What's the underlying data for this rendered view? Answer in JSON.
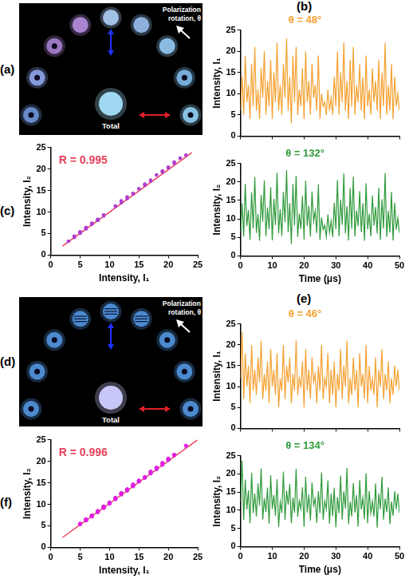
{
  "chart_data": [
    {
      "type": "line",
      "panel": "(b)",
      "title": "θ = 48°",
      "ylabel": "Intensity, I₁",
      "x": [
        0,
        0.5,
        1,
        1.5,
        2,
        2.5,
        3,
        3.5,
        4,
        4.5,
        5,
        5.5,
        6,
        6.5,
        7,
        7.5,
        8,
        8.5,
        9,
        9.5,
        10,
        10.5,
        11,
        11.5,
        12,
        12.5,
        13,
        13.5,
        14,
        14.5,
        15,
        15.5,
        16,
        16.5,
        17,
        17.5,
        18,
        18.5,
        19,
        19.5,
        20,
        20.5,
        21,
        21.5,
        22,
        22.5,
        23,
        23.5,
        24,
        24.5,
        25,
        25.5,
        26,
        26.5,
        27,
        27.5,
        28,
        28.5,
        29,
        29.5,
        30,
        30.5,
        31,
        31.5,
        32,
        32.5,
        33,
        33.5,
        34,
        34.5,
        35,
        35.5,
        36,
        36.5,
        37,
        37.5,
        38,
        38.5,
        39,
        39.5,
        40,
        40.5,
        41,
        41.5,
        42,
        42.5,
        43,
        43.5,
        44,
        44.5,
        45,
        45.5,
        46,
        46.5,
        47,
        47.5,
        48,
        48.5,
        49,
        49.5,
        50
      ],
      "series": [
        {
          "color": "#f5a030",
          "values": [
            6,
            14,
            5,
            19,
            8,
            12,
            4,
            17,
            7,
            21,
            6,
            11,
            4,
            16,
            9,
            20,
            5,
            13,
            7,
            18,
            4,
            15,
            8,
            22,
            6,
            12,
            5,
            17,
            9,
            23,
            6,
            14,
            3,
            19,
            8,
            21,
            5,
            11,
            7,
            16,
            4,
            20,
            8,
            13,
            5,
            17,
            9,
            12,
            6,
            19,
            4,
            10,
            7,
            8,
            5,
            11,
            6,
            9,
            5,
            14,
            7,
            20,
            5,
            15,
            8,
            22,
            6,
            13,
            4,
            18,
            7,
            21,
            5,
            12,
            8,
            17,
            6,
            14,
            4,
            19,
            7,
            11,
            5,
            16,
            8,
            13,
            6,
            18,
            4,
            15,
            7,
            22,
            5,
            12,
            6,
            17,
            4,
            14,
            7,
            10,
            6
          ]
        }
      ],
      "xlim": [
        0,
        50
      ],
      "ylim": [
        0,
        25
      ],
      "xticks": [
        0,
        10,
        20,
        30,
        40,
        50
      ],
      "yticks": [
        0,
        5,
        10,
        15,
        20,
        25
      ],
      "grid": false,
      "tick_labels": "y"
    },
    {
      "type": "line",
      "title": "θ = 132°",
      "xlabel": "Time (μs)",
      "ylabel": "Intensity, I₂",
      "x": [
        0,
        0.5,
        1,
        1.5,
        2,
        2.5,
        3,
        3.5,
        4,
        4.5,
        5,
        5.5,
        6,
        6.5,
        7,
        7.5,
        8,
        8.5,
        9,
        9.5,
        10,
        10.5,
        11,
        11.5,
        12,
        12.5,
        13,
        13.5,
        14,
        14.5,
        15,
        15.5,
        16,
        16.5,
        17,
        17.5,
        18,
        18.5,
        19,
        19.5,
        20,
        20.5,
        21,
        21.5,
        22,
        22.5,
        23,
        23.5,
        24,
        24.5,
        25,
        25.5,
        26,
        26.5,
        27,
        27.5,
        28,
        28.5,
        29,
        29.5,
        30,
        30.5,
        31,
        31.5,
        32,
        32.5,
        33,
        33.5,
        34,
        34.5,
        35,
        35.5,
        36,
        36.5,
        37,
        37.5,
        38,
        38.5,
        39,
        39.5,
        40,
        40.5,
        41,
        41.5,
        42,
        42.5,
        43,
        43.5,
        44,
        44.5,
        45,
        45.5,
        46,
        46.5,
        47,
        47.5,
        48,
        48.5,
        49,
        49.5,
        50
      ],
      "series": [
        {
          "color": "#2e9a3a",
          "values": [
            6.3,
            14.2,
            5.2,
            19.5,
            8.1,
            12.4,
            4.3,
            17.2,
            7.4,
            21.3,
            6.2,
            11.3,
            4.1,
            16.5,
            9.2,
            20.4,
            5.3,
            13.1,
            7.2,
            18.6,
            4.2,
            15.4,
            8.3,
            22.5,
            6.1,
            12.6,
            5.4,
            17.3,
            9.1,
            23.2,
            6.4,
            14.3,
            3.2,
            19.4,
            8.2,
            21.6,
            5.1,
            11.4,
            7.3,
            16.2,
            4.4,
            20.3,
            8.1,
            13.5,
            5.2,
            17.4,
            9.3,
            12.2,
            6.2,
            19.3,
            4.3,
            10.4,
            7.1,
            8.3,
            5.2,
            11.2,
            6.3,
            9.4,
            5.1,
            14.4,
            7.2,
            20.5,
            5.3,
            15.2,
            8.4,
            22.3,
            6.1,
            13.4,
            4.2,
            18.3,
            7.3,
            21.4,
            5.2,
            12.3,
            8.1,
            17.5,
            6.4,
            14.2,
            4.1,
            19.6,
            7.2,
            11.4,
            5.3,
            16.3,
            8.2,
            13.2,
            6.1,
            18.4,
            4.3,
            15.3,
            7.4,
            22.4,
            5.1,
            12.2,
            6.3,
            17.3,
            4.2,
            14.4,
            7.1,
            10.2,
            6.2
          ]
        }
      ],
      "xlim": [
        0,
        50
      ],
      "ylim": [
        0,
        25
      ],
      "xticks": [
        0,
        10,
        20,
        30,
        40,
        50
      ],
      "yticks": [
        0,
        5,
        10,
        15,
        20,
        25
      ],
      "grid": false
    },
    {
      "type": "scatter",
      "panel": "(c)",
      "annotation": "R = 0.995",
      "xlabel": "Intensity, I₁",
      "ylabel": "Intensity, I₂",
      "series": [
        {
          "type": "scatter",
          "color": "#b03cd0",
          "marker": "square",
          "x": [
            6,
            14,
            5,
            19,
            8,
            12,
            4,
            17,
            7,
            21,
            6,
            11,
            4,
            16,
            9,
            20,
            5,
            13,
            7,
            18,
            4,
            15,
            8,
            22,
            6,
            12,
            5,
            17,
            9,
            23,
            6,
            14,
            3,
            19,
            8,
            21,
            5,
            11,
            7,
            16,
            4,
            20,
            8,
            13,
            5,
            17,
            9,
            12,
            6,
            19
          ],
          "values": [
            6.3,
            14.2,
            5.2,
            19.5,
            8.1,
            12.4,
            4.3,
            17.2,
            7.4,
            21.3,
            6.2,
            11.3,
            4.1,
            16.5,
            9.2,
            20.4,
            5.3,
            13.1,
            7.2,
            18.6,
            4.2,
            15.4,
            8.3,
            22.5,
            6.1,
            12.6,
            5.4,
            17.3,
            9.1,
            23.2,
            6.4,
            14.3,
            3.2,
            19.4,
            8.2,
            21.6,
            5.1,
            11.4,
            7.3,
            16.2,
            4.4,
            20.3,
            8.1,
            13.5,
            5.2,
            17.4,
            9.3,
            12.2,
            6.2,
            19.3
          ]
        },
        {
          "type": "line",
          "color": "#e8405a",
          "line_style": "solid",
          "x": [
            2,
            24
          ],
          "values": [
            2.1,
            23.8
          ]
        }
      ],
      "xlim": [
        0,
        25
      ],
      "ylim": [
        0,
        25
      ],
      "xticks": [
        0,
        5,
        10,
        15,
        20,
        25
      ],
      "yticks": [
        0,
        5,
        10,
        15,
        20,
        25
      ],
      "grid": false
    },
    {
      "type": "line",
      "panel": "(e)",
      "title": "θ = 46°",
      "ylabel": "Intensity, I₁",
      "x": [
        0,
        0.5,
        1,
        1.5,
        2,
        2.5,
        3,
        3.5,
        4,
        4.5,
        5,
        5.5,
        6,
        6.5,
        7,
        7.5,
        8,
        8.5,
        9,
        9.5,
        10,
        10.5,
        11,
        11.5,
        12,
        12.5,
        13,
        13.5,
        14,
        14.5,
        15,
        15.5,
        16,
        16.5,
        17,
        17.5,
        18,
        18.5,
        19,
        19.5,
        20,
        20.5,
        21,
        21.5,
        22,
        22.5,
        23,
        23.5,
        24,
        24.5,
        25,
        25.5,
        26,
        26.5,
        27,
        27.5,
        28,
        28.5,
        29,
        29.5,
        30,
        30.5,
        31,
        31.5,
        32,
        32.5,
        33,
        33.5,
        34,
        34.5,
        35,
        35.5,
        36,
        36.5,
        37,
        37.5,
        38,
        38.5,
        39,
        39.5,
        40,
        40.5,
        41,
        41.5,
        42,
        42.5,
        43,
        43.5,
        44,
        44.5,
        45,
        45.5,
        46,
        46.5,
        47,
        47.5,
        48,
        48.5,
        49,
        49.5,
        50
      ],
      "series": [
        {
          "color": "#f5a030",
          "values": [
            12,
            23,
            7,
            18,
            10,
            15,
            6,
            20,
            9,
            14,
            8,
            17,
            11,
            21,
            7,
            13,
            9,
            16,
            6,
            19,
            10,
            14,
            8,
            18,
            5,
            12,
            9,
            20,
            7,
            15,
            11,
            17,
            6,
            13,
            9,
            21,
            8,
            12,
            10,
            16,
            5,
            19,
            9,
            14,
            7,
            17,
            11,
            13,
            6,
            15,
            9,
            20,
            7,
            12,
            10,
            18,
            6,
            14,
            8,
            16,
            5,
            13,
            9,
            19,
            7,
            15,
            10,
            21,
            6,
            12,
            8,
            17,
            9,
            14,
            5,
            18,
            10,
            13,
            7,
            20,
            6,
            15,
            9,
            12,
            8,
            17,
            5,
            14,
            10,
            19,
            7,
            13,
            9,
            16,
            6,
            12,
            8,
            15,
            10,
            14,
            9
          ]
        }
      ],
      "xlim": [
        0,
        50
      ],
      "ylim": [
        0,
        25
      ],
      "xticks": [
        0,
        10,
        20,
        30,
        40,
        50
      ],
      "yticks": [
        0,
        5,
        10,
        15,
        20,
        25
      ],
      "grid": false,
      "tick_labels": "y"
    },
    {
      "type": "line",
      "title": "θ = 134°",
      "xlabel": "Time (μs)",
      "ylabel": "Intensity, I₂",
      "x": [
        0,
        0.5,
        1,
        1.5,
        2,
        2.5,
        3,
        3.5,
        4,
        4.5,
        5,
        5.5,
        6,
        6.5,
        7,
        7.5,
        8,
        8.5,
        9,
        9.5,
        10,
        10.5,
        11,
        11.5,
        12,
        12.5,
        13,
        13.5,
        14,
        14.5,
        15,
        15.5,
        16,
        16.5,
        17,
        17.5,
        18,
        18.5,
        19,
        19.5,
        20,
        20.5,
        21,
        21.5,
        22,
        22.5,
        23,
        23.5,
        24,
        24.5,
        25,
        25.5,
        26,
        26.5,
        27,
        27.5,
        28,
        28.5,
        29,
        29.5,
        30,
        30.5,
        31,
        31.5,
        32,
        32.5,
        33,
        33.5,
        34,
        34.5,
        35,
        35.5,
        36,
        36.5,
        37,
        37.5,
        38,
        38.5,
        39,
        39.5,
        40,
        40.5,
        41,
        41.5,
        42,
        42.5,
        43,
        43.5,
        44,
        44.5,
        45,
        45.5,
        46,
        46.5,
        47,
        47.5,
        48,
        48.5,
        49,
        49.5,
        50
      ],
      "series": [
        {
          "color": "#2e9a3a",
          "values": [
            12.4,
            23.6,
            7.3,
            18.4,
            10.2,
            15.5,
            6.4,
            20.3,
            9.2,
            14.6,
            8.3,
            17.4,
            11.2,
            21.5,
            7.4,
            13.3,
            9.5,
            16.2,
            6.3,
            19.6,
            10.3,
            14.2,
            8.4,
            18.5,
            5.4,
            12.3,
            9.2,
            20.6,
            7.3,
            15.4,
            11.5,
            17.2,
            6.4,
            13.5,
            9.3,
            21.4,
            8.2,
            12.6,
            10.4,
            16.3,
            5.5,
            19.2,
            9.4,
            14.3,
            7.2,
            17.6,
            11.3,
            13.2,
            6.5,
            15.3,
            9.2,
            20.4,
            7.4,
            12.5,
            10.3,
            18.2,
            6.3,
            14.5,
            8.4,
            16.2,
            5.3,
            13.6,
            9.2,
            19.5,
            7.4,
            15.2,
            10.5,
            21.6,
            6.2,
            12.4,
            8.3,
            17.5,
            9.4,
            14.2,
            5.5,
            18.3,
            10.2,
            13.4,
            7.5,
            20.2,
            6.4,
            15.3,
            9.2,
            12.5,
            8.3,
            17.4,
            5.2,
            14.6,
            10.3,
            19.2,
            7.4,
            13.2,
            9.5,
            16.3,
            6.2,
            12.4,
            8.5,
            15.2,
            10.3,
            14.5,
            9.3
          ]
        }
      ],
      "xlim": [
        0,
        50
      ],
      "ylim": [
        0,
        25
      ],
      "xticks": [
        0,
        10,
        20,
        30,
        40,
        50
      ],
      "yticks": [
        0,
        5,
        10,
        15,
        20,
        25
      ],
      "grid": false
    },
    {
      "type": "scatter",
      "panel": "(f)",
      "annotation": "R = 0.996",
      "xlabel": "Intensity, I₁",
      "ylabel": "Intensity, I₂",
      "series": [
        {
          "type": "scatter",
          "color": "#e020e0",
          "marker": "circle",
          "x": [
            12,
            23,
            7,
            18,
            10,
            15,
            6,
            20,
            9,
            14,
            8,
            17,
            11,
            21,
            7,
            13,
            9,
            16,
            6,
            19,
            10,
            14,
            8,
            18,
            5,
            12,
            9,
            20,
            7,
            15,
            11,
            17,
            6,
            13,
            9,
            21,
            8,
            12,
            10,
            16,
            5,
            19,
            9,
            14,
            7,
            17,
            11,
            13,
            6,
            15,
            9,
            20,
            7,
            12,
            10,
            18,
            6,
            14,
            8,
            16
          ],
          "values": [
            12.4,
            23.6,
            7.3,
            18.4,
            10.2,
            15.5,
            6.4,
            20.3,
            9.2,
            14.6,
            8.3,
            17.4,
            11.2,
            21.5,
            7.4,
            13.3,
            9.5,
            16.2,
            6.3,
            19.6,
            10.3,
            14.2,
            8.4,
            18.5,
            5.4,
            12.3,
            9.2,
            20.6,
            7.3,
            15.4,
            11.5,
            17.2,
            6.4,
            13.5,
            9.3,
            21.4,
            8.2,
            12.6,
            10.4,
            16.3,
            5.5,
            19.2,
            9.4,
            14.3,
            7.2,
            17.6,
            11.3,
            13.2,
            6.5,
            15.3,
            9.2,
            20.4,
            7.4,
            12.5,
            10.3,
            18.2,
            6.3,
            14.5,
            8.4,
            16.2
          ]
        },
        {
          "type": "line",
          "color": "#e8405a",
          "line_style": "solid",
          "x": [
            2,
            25
          ],
          "values": [
            2.3,
            25
          ]
        }
      ],
      "xlim": [
        0,
        25
      ],
      "ylim": [
        0,
        25
      ],
      "xticks": [
        0,
        5,
        10,
        15,
        20,
        25
      ],
      "yticks": [
        0,
        5,
        10,
        15,
        20,
        25
      ],
      "grid": false
    }
  ],
  "images": [
    {
      "panel": "(a)",
      "caption": "Polarization rotation, θ",
      "total": "Total"
    },
    {
      "panel": "(d)",
      "caption": "Polarization rotation, θ",
      "total": "Total"
    }
  ]
}
